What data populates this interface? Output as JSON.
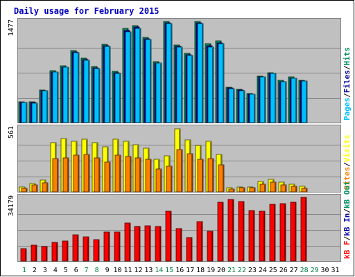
{
  "colors": {
    "panel_bg": "#c0c0c0",
    "frame": "#808080",
    "gridline": "#808080",
    "title_text": "#0000c0",
    "pages": "#00c0ff",
    "hits": "#009060",
    "files": "#0000a0",
    "visits": "#ffff00",
    "sites": "#ff8000",
    "kb": "#ff0000",
    "label_green": "#008040",
    "label_black": "#000000"
  },
  "chart_data": {
    "type": "bar",
    "title": "Daily usage for February 2015",
    "categories": [
      "1",
      "2",
      "3",
      "4",
      "5",
      "6",
      "7",
      "8",
      "9",
      "10",
      "11",
      "12",
      "13",
      "14",
      "15",
      "16",
      "17",
      "18",
      "19",
      "20",
      "21",
      "22",
      "23",
      "24",
      "25",
      "26",
      "27",
      "28",
      "29",
      "30",
      "31"
    ],
    "weekend_days": [
      "1",
      "7",
      "8",
      "14",
      "15",
      "21",
      "22",
      "28",
      "29"
    ],
    "legend_placement": "right",
    "panels": [
      {
        "id": "hits-files-pages",
        "max_label": "1477",
        "ymax": 1477,
        "legend": [
          {
            "text": "Pages",
            "color_key": "pages"
          },
          {
            "text": "/",
            "color_key": "label_black"
          },
          {
            "text": "Files",
            "color_key": "files"
          },
          {
            "text": "/",
            "color_key": "label_black"
          },
          {
            "text": "Hits",
            "color_key": "hits"
          }
        ],
        "series": [
          {
            "name": "Hits",
            "color_key": "hits",
            "values": [
              305,
              300,
              480,
              760,
              830,
              1050,
              945,
              820,
              1140,
              745,
              1380,
              1420,
              1240,
              890,
              1480,
              1130,
              1010,
              1480,
              1150,
              1190,
              520,
              490,
              425,
              680,
              730,
              615,
              665,
              615,
              0,
              0,
              0
            ]
          },
          {
            "name": "Files",
            "color_key": "files",
            "values": [
              295,
              290,
              470,
              740,
              810,
              1030,
              925,
              800,
              1120,
              725,
              1350,
              1400,
              1220,
              870,
              1460,
              1110,
              990,
              1460,
              1120,
              1160,
              510,
              480,
              415,
              670,
              720,
              600,
              650,
              610,
              0,
              0,
              0
            ]
          },
          {
            "name": "Pages",
            "color_key": "pages",
            "values": [
              290,
              285,
              465,
              735,
              805,
              1020,
              915,
              790,
              1110,
              715,
              1330,
              1380,
              1210,
              865,
              1450,
              1100,
              980,
              1450,
              1100,
              1150,
              500,
              470,
              410,
              665,
              715,
              595,
              645,
              605,
              0,
              0,
              0
            ]
          }
        ]
      },
      {
        "id": "visits-sites",
        "max_label": "561",
        "ymax": 561,
        "legend": [
          {
            "text": "Sites",
            "color_key": "sites"
          },
          {
            "text": "/",
            "color_key": "label_black"
          },
          {
            "text": "Visits",
            "color_key": "visits"
          }
        ],
        "series": [
          {
            "name": "Visits",
            "color_key": "visits",
            "values": [
              40,
              75,
              105,
              435,
              470,
              445,
              465,
              435,
              395,
              465,
              445,
              415,
              385,
              285,
              320,
              555,
              455,
              410,
              445,
              330,
              35,
              45,
              45,
              90,
              110,
              85,
              70,
              50,
              0,
              0,
              0
            ]
          },
          {
            "name": "Sites",
            "color_key": "sites",
            "values": [
              30,
              60,
              80,
              290,
              300,
              325,
              330,
              300,
              265,
              325,
              310,
              300,
              285,
              200,
              225,
              370,
              335,
              285,
              295,
              240,
              25,
              35,
              35,
              65,
              85,
              60,
              50,
              30,
              0,
              0,
              0
            ]
          }
        ]
      },
      {
        "id": "kbf-kbin-kbout",
        "max_label": "34179",
        "ymax": 34179,
        "legend": [
          {
            "text": "kB F",
            "color_key": "kb"
          },
          {
            "text": "/",
            "color_key": "label_black"
          },
          {
            "text": "kB In",
            "color_key": "files"
          },
          {
            "text": "/",
            "color_key": "label_black"
          },
          {
            "text": "kB Out",
            "color_key": "hits"
          }
        ],
        "series": [
          {
            "name": "kB F",
            "color_key": "kb",
            "values": [
              6800,
              8500,
              7900,
              10200,
              10800,
              14000,
              12900,
              11400,
              15600,
              15600,
              20600,
              18600,
              18900,
              18400,
              26800,
              17600,
              12500,
              21100,
              15800,
              31400,
              33100,
              31800,
              27000,
              26700,
              30400,
              30800,
              31500,
              34179,
              0,
              0,
              0
            ]
          }
        ]
      }
    ]
  }
}
